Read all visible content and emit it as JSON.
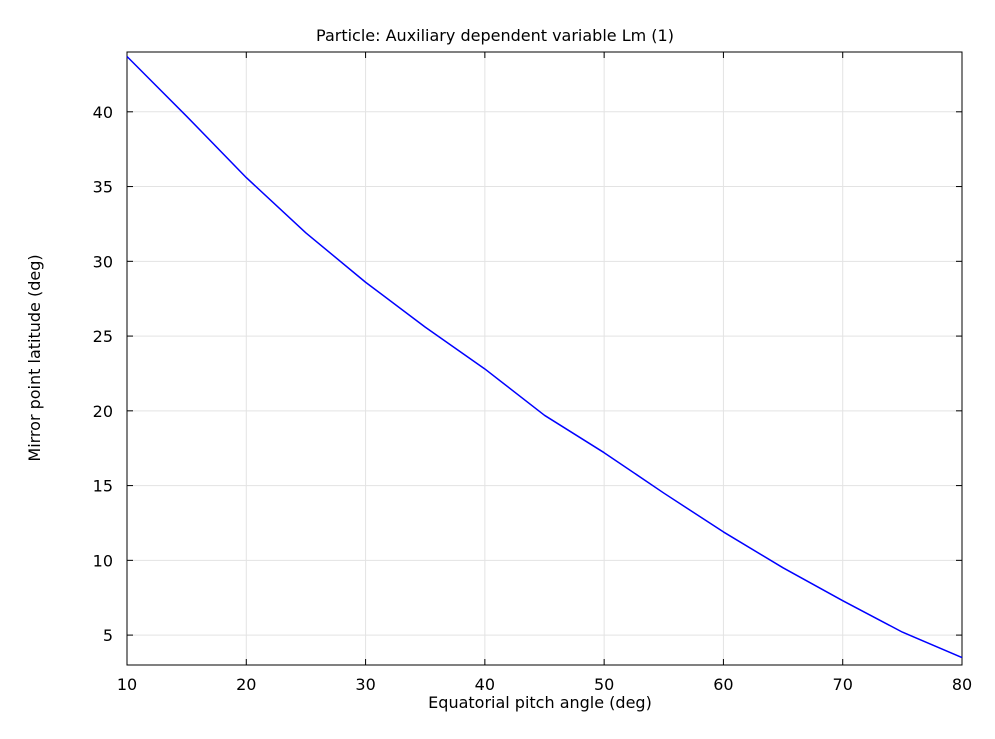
{
  "chart_data": {
    "type": "line",
    "title": "Particle: Auxiliary dependent variable Lm (1)",
    "xlabel": "Equatorial pitch angle (deg)",
    "ylabel": "Mirror point latitude (deg)",
    "xlim": [
      10,
      80
    ],
    "ylim": [
      3,
      44
    ],
    "xticks": [
      10,
      20,
      30,
      40,
      50,
      60,
      70,
      80
    ],
    "yticks": [
      5,
      10,
      15,
      20,
      25,
      30,
      35,
      40
    ],
    "grid": true,
    "series": [
      {
        "color": "#0000ff",
        "x": [
          10,
          15,
          20,
          25,
          30,
          35,
          40,
          45,
          50,
          55,
          60,
          65,
          70,
          75,
          80
        ],
        "y": [
          43.7,
          39.7,
          35.6,
          31.9,
          28.6,
          25.6,
          22.8,
          19.7,
          17.2,
          14.5,
          11.9,
          9.5,
          7.3,
          5.2,
          3.5
        ]
      }
    ]
  }
}
